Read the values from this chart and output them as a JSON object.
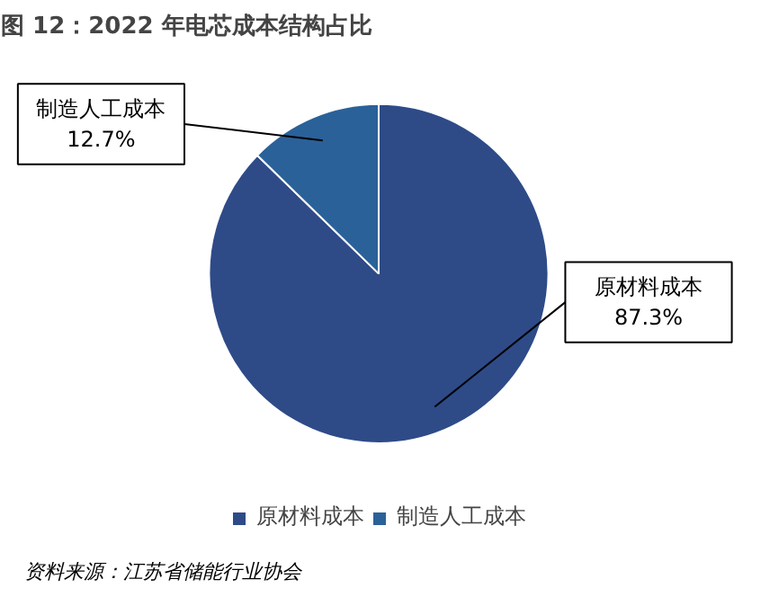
{
  "chart_data": {
    "type": "pie",
    "title": "图 12：2022 年电芯成本结构占比",
    "categories": [
      "原材料成本",
      "制造人工成本"
    ],
    "values": [
      87.3,
      12.7
    ],
    "colors": [
      "#2e4b88",
      "#2b6199"
    ],
    "value_labels": [
      "87.3%",
      "12.7%"
    ],
    "legend": "bottom",
    "annotations": [
      "资料来源：江苏省储能行业协会"
    ]
  }
}
